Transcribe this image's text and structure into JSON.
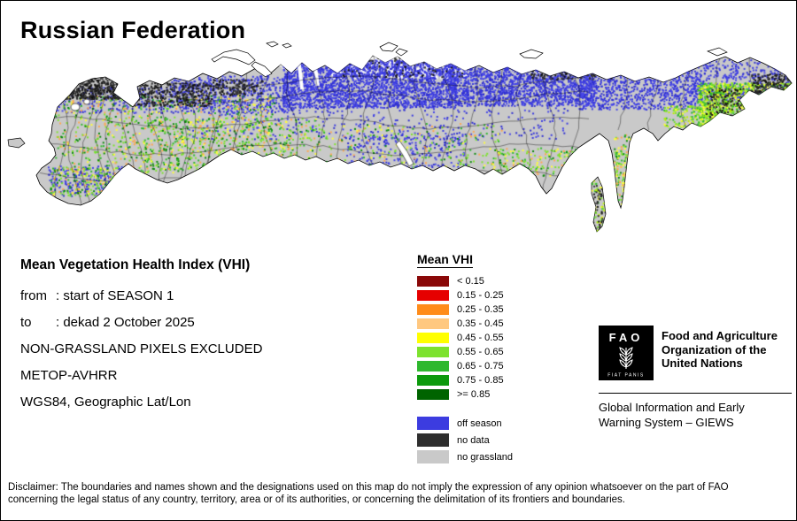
{
  "title": "Russian Federation",
  "info": {
    "heading": "Mean Vegetation Health Index (VHI)",
    "lines": [
      {
        "label": "from",
        "value": ": start of SEASON 1"
      },
      {
        "label": "to",
        "value": ": dekad 2 October 2025"
      },
      {
        "label": "",
        "value": "NON-GRASSLAND PIXELS EXCLUDED"
      },
      {
        "label": "",
        "value": "METOP-AVHRR"
      },
      {
        "label": "",
        "value": "WGS84, Geographic Lat/Lon"
      }
    ]
  },
  "legend": {
    "title": "Mean VHI",
    "classes": [
      {
        "label": "< 0.15",
        "color": "#8a0808"
      },
      {
        "label": "0.15 - 0.25",
        "color": "#e60000"
      },
      {
        "label": "0.25 - 0.35",
        "color": "#ff8c1a"
      },
      {
        "label": "0.35 - 0.45",
        "color": "#ffc880"
      },
      {
        "label": "0.45 - 0.55",
        "color": "#ffff00"
      },
      {
        "label": "0.55 - 0.65",
        "color": "#7de22e"
      },
      {
        "label": "0.65 - 0.75",
        "color": "#2eb82e"
      },
      {
        "label": "0.75 - 0.85",
        "color": "#0c9a0c"
      },
      {
        "label": ">= 0.85",
        "color": "#006400"
      }
    ],
    "extra": [
      {
        "label": "off season",
        "color": "#3c3ce0"
      },
      {
        "label": "no data",
        "color": "#2e2e2e"
      },
      {
        "label": "no grassland",
        "color": "#c9c9c9"
      }
    ]
  },
  "org": {
    "logo_text": "FAO",
    "logo_motto": "FIAT PANIS",
    "name": "Food and Agriculture\nOrganization of the\nUnited Nations",
    "system": "Global Information and Early\nWarning System – GIEWS"
  },
  "disclaimer": "Disclaimer: The boundaries and names shown and the designations used on this map do not imply the expression of any opinion whatsoever on the part of FAO\nconcerning the legal status of any country, territory, area or of its authorities, or concerning the delimitation of its frontiers and boundaries.",
  "map": {
    "colors": {
      "land": "#c9c9c9",
      "water": "#ffffff",
      "outline": "#000000"
    },
    "speckles": [
      {
        "name": "ice",
        "colors": [
          "#ffffff",
          "#f0f0f0"
        ],
        "size": 3,
        "regions": [
          [
            370,
            56,
            155,
            30,
            800
          ],
          [
            296,
            58,
            85,
            16,
            150
          ]
        ]
      },
      {
        "name": "off-season",
        "colors": [
          "#3a3ae0",
          "#4848e8",
          "#2f2fd0"
        ],
        "size": 2,
        "regions": [
          [
            318,
            66,
            195,
            54,
            2700
          ],
          [
            505,
            70,
            165,
            48,
            1700
          ],
          [
            652,
            78,
            138,
            44,
            850
          ],
          [
            190,
            84,
            140,
            42,
            650
          ],
          [
            62,
            96,
            130,
            30,
            240
          ],
          [
            210,
            120,
            430,
            36,
            300
          ],
          [
            778,
            62,
            117,
            55,
            520
          ],
          [
            390,
            148,
            135,
            40,
            260
          ],
          [
            52,
            186,
            95,
            34,
            240
          ]
        ]
      },
      {
        "name": "vegetation",
        "colors": [
          "#7de22e",
          "#2eb82e",
          "#ffff33",
          "#7de22e",
          "#0a8a0a",
          "#ffa64d"
        ],
        "size": 2,
        "regions": [
          [
            60,
            106,
            250,
            88,
            900
          ],
          [
            160,
            132,
            195,
            58,
            400
          ],
          [
            310,
            138,
            255,
            50,
            280
          ],
          [
            555,
            165,
            95,
            32,
            170
          ],
          [
            55,
            188,
            85,
            32,
            220
          ],
          [
            692,
            150,
            18,
            82,
            160
          ]
        ]
      },
      {
        "name": "vegetation-east",
        "colors": [
          "#b8f000",
          "#7de22e",
          "#ffff33",
          "#2eb82e"
        ],
        "size": 2,
        "regions": [
          [
            786,
            92,
            106,
            50,
            1400
          ],
          [
            748,
            118,
            64,
            28,
            200
          ],
          [
            666,
            202,
            18,
            58,
            80
          ]
        ]
      },
      {
        "name": "no-data",
        "colors": [
          "#262626",
          "#383838",
          "#101010"
        ],
        "size": 2,
        "regions": [
          [
            56,
            86,
            78,
            24,
            520
          ],
          [
            150,
            92,
            88,
            26,
            330
          ],
          [
            238,
            88,
            58,
            18,
            140
          ],
          [
            846,
            82,
            49,
            54,
            460
          ],
          [
            796,
            98,
            64,
            34,
            200
          ],
          [
            380,
            58,
            145,
            28,
            130
          ],
          [
            598,
            74,
            92,
            14,
            140
          ],
          [
            668,
            206,
            16,
            54,
            60
          ]
        ]
      }
    ]
  }
}
